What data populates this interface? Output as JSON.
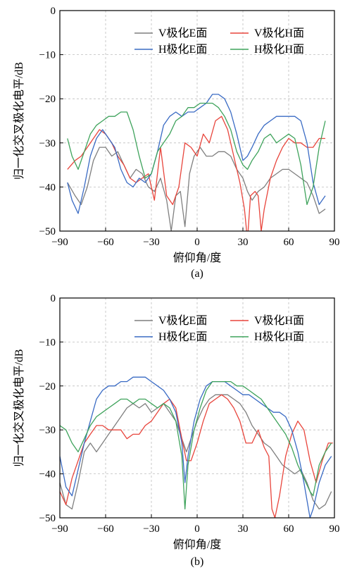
{
  "chart_data": [
    {
      "type": "line",
      "panel_label": "(a)",
      "xlabel": "俯仰角/度",
      "ylabel": "归一化交叉极化电平/dB",
      "xlim": [
        -90,
        90
      ],
      "ylim": [
        -50,
        0
      ],
      "xticks": [
        -90,
        -60,
        -30,
        0,
        30,
        60,
        90
      ],
      "yticks": [
        0,
        -10,
        -20,
        -30,
        -40,
        -50
      ],
      "grid": true,
      "legend_position": "top-right",
      "series": [
        {
          "name": "V极化E面",
          "color": "#7f7f7f",
          "x": [
            -85,
            -80,
            -76,
            -72,
            -68,
            -64,
            -60,
            -56,
            -52,
            -48,
            -44,
            -40,
            -36,
            -32,
            -28,
            -24,
            -20,
            -17,
            -14,
            -11,
            -8,
            -5,
            -2,
            2,
            6,
            10,
            14,
            18,
            22,
            26,
            30,
            33,
            36,
            40,
            44,
            48,
            52,
            56,
            60,
            64,
            68,
            72,
            76,
            80,
            84
          ],
          "y": [
            -39,
            -42,
            -44,
            -40,
            -34,
            -31,
            -31,
            -33,
            -32,
            -35,
            -38,
            -36,
            -37,
            -40,
            -41,
            -38,
            -43,
            -50,
            -42,
            -41,
            -49,
            -37,
            -33,
            -31,
            -33,
            -33,
            -32,
            -32,
            -33,
            -36,
            -38,
            -41,
            -43,
            -41,
            -40,
            -38,
            -37,
            -36,
            -36,
            -37,
            -38,
            -39,
            -42,
            -46,
            -45
          ]
        },
        {
          "name": "V极化H面",
          "color": "#e8453c",
          "x": [
            -85,
            -80,
            -76,
            -72,
            -68,
            -64,
            -60,
            -56,
            -52,
            -48,
            -44,
            -40,
            -36,
            -32,
            -28,
            -24,
            -20,
            -16,
            -12,
            -8,
            -4,
            0,
            4,
            8,
            12,
            16,
            20,
            24,
            28,
            31,
            33,
            35,
            38,
            40,
            42,
            44,
            48,
            52,
            56,
            60,
            64,
            68,
            72,
            76,
            80,
            84
          ],
          "y": [
            -36,
            -34,
            -33,
            -31,
            -29,
            -27,
            -28,
            -30,
            -33,
            -35,
            -38,
            -39,
            -38,
            -37,
            -43,
            -31,
            -42,
            -44,
            -40,
            -30,
            -31,
            -33,
            -28,
            -30,
            -25,
            -24,
            -27,
            -33,
            -39,
            -45,
            -52,
            -42,
            -41,
            -42,
            -50,
            -45,
            -38,
            -34,
            -31,
            -29,
            -30,
            -30,
            -31,
            -31,
            -29,
            -29
          ]
        },
        {
          "name": "H极化E面",
          "color": "#3a6bc4",
          "x": [
            -85,
            -82,
            -78,
            -74,
            -70,
            -66,
            -62,
            -58,
            -54,
            -50,
            -46,
            -42,
            -38,
            -34,
            -30,
            -26,
            -22,
            -18,
            -14,
            -10,
            -6,
            -2,
            2,
            6,
            10,
            14,
            18,
            22,
            26,
            30,
            33,
            36,
            40,
            44,
            48,
            52,
            56,
            60,
            64,
            68,
            72,
            76,
            80,
            84
          ],
          "y": [
            -39,
            -43,
            -46,
            -40,
            -33,
            -29,
            -27,
            -29,
            -31,
            -36,
            -39,
            -40,
            -38,
            -39,
            -37,
            -32,
            -26,
            -24,
            -23,
            -24,
            -23,
            -23,
            -22,
            -21,
            -19,
            -19,
            -20,
            -23,
            -28,
            -34,
            -33,
            -31,
            -28,
            -26,
            -25,
            -24,
            -24,
            -24,
            -24,
            -25,
            -30,
            -39,
            -44,
            -42
          ]
        },
        {
          "name": "H极化H面",
          "color": "#3fa35c",
          "x": [
            -85,
            -82,
            -78,
            -74,
            -70,
            -66,
            -62,
            -58,
            -54,
            -50,
            -46,
            -42,
            -38,
            -34,
            -30,
            -26,
            -22,
            -18,
            -14,
            -10,
            -6,
            -2,
            2,
            6,
            10,
            14,
            18,
            22,
            26,
            30,
            33,
            36,
            40,
            44,
            48,
            52,
            56,
            60,
            64,
            68,
            72,
            76,
            80,
            84
          ],
          "y": [
            -29,
            -33,
            -36,
            -32,
            -28,
            -26,
            -25,
            -24,
            -24,
            -23,
            -23,
            -27,
            -33,
            -38,
            -37,
            -32,
            -30,
            -28,
            -25,
            -24,
            -22,
            -22,
            -21,
            -21,
            -21,
            -22,
            -24,
            -27,
            -32,
            -35,
            -36,
            -34,
            -32,
            -29,
            -28,
            -30,
            -29,
            -28,
            -29,
            -35,
            -44,
            -40,
            -31,
            -25
          ]
        }
      ]
    },
    {
      "type": "line",
      "panel_label": "(b)",
      "xlabel": "俯仰角/度",
      "ylabel": "归一化交叉极化电平/dB",
      "xlim": [
        -90,
        90
      ],
      "ylim": [
        -50,
        0
      ],
      "xticks": [
        -90,
        -60,
        -30,
        0,
        30,
        60,
        90
      ],
      "yticks": [
        0,
        -10,
        -20,
        -30,
        -40,
        -50
      ],
      "grid": true,
      "legend_position": "top-right",
      "series": [
        {
          "name": "V极化E面",
          "color": "#7f7f7f",
          "x": [
            -90,
            -86,
            -82,
            -78,
            -74,
            -70,
            -66,
            -62,
            -58,
            -54,
            -50,
            -46,
            -42,
            -38,
            -34,
            -30,
            -26,
            -22,
            -18,
            -14,
            -10,
            -7,
            -4,
            0,
            4,
            8,
            12,
            16,
            20,
            24,
            28,
            32,
            36,
            40,
            44,
            48,
            52,
            56,
            60,
            64,
            68,
            72,
            76,
            80,
            84,
            88
          ],
          "y": [
            -42,
            -47,
            -48,
            -42,
            -35,
            -33,
            -35,
            -33,
            -31,
            -29,
            -27,
            -25,
            -24,
            -25,
            -24,
            -26,
            -25,
            -24,
            -26,
            -28,
            -32,
            -35,
            -32,
            -28,
            -25,
            -23,
            -22,
            -22,
            -22,
            -23,
            -24,
            -26,
            -29,
            -31,
            -33,
            -34,
            -36,
            -38,
            -39,
            -40,
            -39,
            -42,
            -46,
            -48,
            -47,
            -44
          ]
        },
        {
          "name": "V极化H面",
          "color": "#e8453c",
          "x": [
            -90,
            -86,
            -82,
            -78,
            -74,
            -70,
            -66,
            -62,
            -58,
            -54,
            -50,
            -46,
            -42,
            -38,
            -34,
            -30,
            -26,
            -22,
            -18,
            -14,
            -10,
            -7,
            -4,
            0,
            4,
            8,
            12,
            16,
            20,
            24,
            28,
            32,
            36,
            40,
            44,
            47,
            49,
            51,
            54,
            58,
            62,
            66,
            70,
            74,
            78,
            82,
            86,
            89
          ],
          "y": [
            -44,
            -47,
            -41,
            -37,
            -33,
            -31,
            -29,
            -29,
            -30,
            -30,
            -30,
            -32,
            -31,
            -31,
            -29,
            -28,
            -26,
            -24,
            -23,
            -25,
            -32,
            -37,
            -37,
            -33,
            -28,
            -24,
            -23,
            -22,
            -23,
            -25,
            -28,
            -33,
            -33,
            -30,
            -34,
            -36,
            -48,
            -50,
            -45,
            -36,
            -31,
            -28,
            -30,
            -37,
            -42,
            -37,
            -33,
            -33
          ]
        },
        {
          "name": "H极化E面",
          "color": "#3a6bc4",
          "x": [
            -90,
            -86,
            -82,
            -78,
            -74,
            -70,
            -66,
            -62,
            -58,
            -54,
            -50,
            -46,
            -42,
            -38,
            -34,
            -30,
            -26,
            -22,
            -18,
            -14,
            -10,
            -8,
            -6,
            -2,
            2,
            6,
            10,
            14,
            18,
            22,
            26,
            30,
            34,
            38,
            42,
            46,
            50,
            54,
            58,
            62,
            66,
            70,
            74,
            76,
            80,
            84,
            88
          ],
          "y": [
            -36,
            -43,
            -45,
            -39,
            -33,
            -28,
            -23,
            -21,
            -20,
            -20,
            -19,
            -19,
            -18,
            -18,
            -18,
            -19,
            -20,
            -21,
            -23,
            -26,
            -33,
            -42,
            -36,
            -28,
            -23,
            -20,
            -19,
            -19,
            -19,
            -20,
            -21,
            -22,
            -22,
            -23,
            -24,
            -25,
            -26,
            -26,
            -27,
            -30,
            -35,
            -42,
            -50,
            -48,
            -42,
            -38,
            -36
          ]
        },
        {
          "name": "H极化H面",
          "color": "#3fa35c",
          "x": [
            -90,
            -86,
            -82,
            -78,
            -74,
            -70,
            -66,
            -62,
            -58,
            -54,
            -50,
            -46,
            -42,
            -38,
            -34,
            -30,
            -26,
            -22,
            -18,
            -14,
            -10,
            -8,
            -6,
            -2,
            2,
            6,
            10,
            14,
            18,
            22,
            26,
            30,
            34,
            38,
            42,
            46,
            50,
            54,
            58,
            62,
            66,
            70,
            74,
            76,
            80,
            84,
            88
          ],
          "y": [
            -29,
            -30,
            -33,
            -35,
            -32,
            -29,
            -27,
            -26,
            -25,
            -24,
            -23,
            -23,
            -24,
            -23,
            -23,
            -24,
            -25,
            -24,
            -25,
            -28,
            -36,
            -48,
            -38,
            -30,
            -25,
            -21,
            -19,
            -19,
            -19,
            -19,
            -20,
            -20,
            -21,
            -22,
            -23,
            -25,
            -27,
            -29,
            -31,
            -34,
            -38,
            -41,
            -44,
            -45,
            -38,
            -35,
            -33
          ]
        }
      ]
    }
  ]
}
